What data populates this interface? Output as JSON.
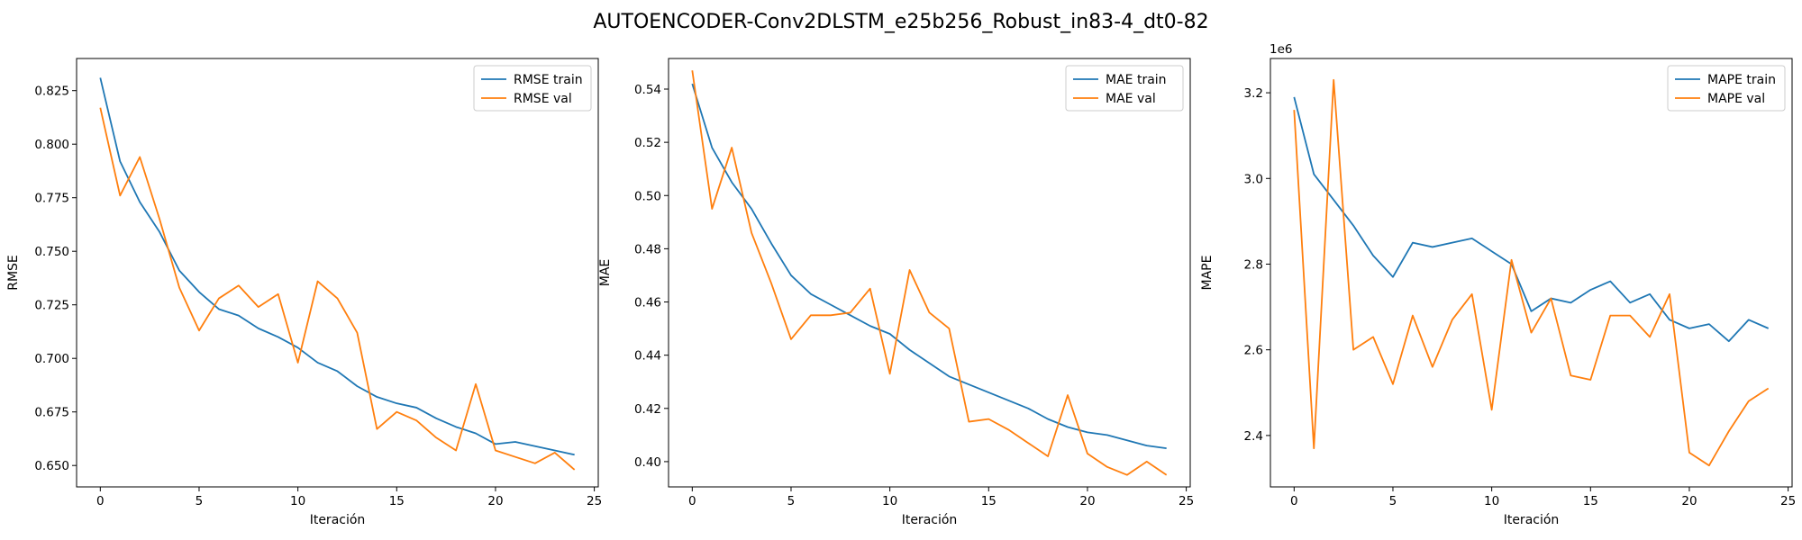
{
  "figure": {
    "title": "AUTOENCODER-Conv2DLSTM_e25b256_Robust_in83-4_dt0-82"
  },
  "colors": {
    "train": "#1f77b4",
    "val": "#ff7f0e"
  },
  "chart_data": [
    {
      "type": "line",
      "xlabel": "Iteración",
      "ylabel": "RMSE",
      "xlim": [
        -1.2,
        25.2
      ],
      "ylim": [
        0.64,
        0.84
      ],
      "xticks": [
        0,
        5,
        10,
        15,
        20,
        25
      ],
      "xtick_labels": [
        "0",
        "5",
        "10",
        "15",
        "20",
        "25"
      ],
      "yticks": [
        0.65,
        0.675,
        0.7,
        0.725,
        0.75,
        0.775,
        0.8,
        0.825
      ],
      "ytick_labels": [
        "0.650",
        "0.675",
        "0.700",
        "0.725",
        "0.750",
        "0.775",
        "0.800",
        "0.825"
      ],
      "offset_label": "",
      "legend": "top-right",
      "grid": false,
      "x": [
        0,
        1,
        2,
        3,
        4,
        5,
        6,
        7,
        8,
        9,
        10,
        11,
        12,
        13,
        14,
        15,
        16,
        17,
        18,
        19,
        20,
        21,
        22,
        23,
        24
      ],
      "series": [
        {
          "name": "RMSE train",
          "color_key": "train",
          "values": [
            0.831,
            0.792,
            0.773,
            0.759,
            0.741,
            0.731,
            0.723,
            0.72,
            0.714,
            0.71,
            0.705,
            0.698,
            0.694,
            0.687,
            0.682,
            0.679,
            0.677,
            0.672,
            0.668,
            0.665,
            0.66,
            0.661,
            0.659,
            0.657,
            0.655
          ]
        },
        {
          "name": "RMSE val",
          "color_key": "val",
          "values": [
            0.817,
            0.776,
            0.794,
            0.765,
            0.733,
            0.713,
            0.728,
            0.734,
            0.724,
            0.73,
            0.698,
            0.736,
            0.728,
            0.712,
            0.667,
            0.675,
            0.671,
            0.663,
            0.657,
            0.688,
            0.657,
            0.654,
            0.651,
            0.656,
            0.648
          ]
        }
      ]
    },
    {
      "type": "line",
      "xlabel": "Iteración",
      "ylabel": "MAE",
      "xlim": [
        -1.2,
        25.2
      ],
      "ylim": [
        0.3905,
        0.5515
      ],
      "xticks": [
        0,
        5,
        10,
        15,
        20,
        25
      ],
      "xtick_labels": [
        "0",
        "5",
        "10",
        "15",
        "20",
        "25"
      ],
      "yticks": [
        0.4,
        0.42,
        0.44,
        0.46,
        0.48,
        0.5,
        0.52,
        0.54
      ],
      "ytick_labels": [
        "0.40",
        "0.42",
        "0.44",
        "0.46",
        "0.48",
        "0.50",
        "0.52",
        "0.54"
      ],
      "offset_label": "",
      "legend": "top-right",
      "grid": false,
      "x": [
        0,
        1,
        2,
        3,
        4,
        5,
        6,
        7,
        8,
        9,
        10,
        11,
        12,
        13,
        14,
        15,
        16,
        17,
        18,
        19,
        20,
        21,
        22,
        23,
        24
      ],
      "series": [
        {
          "name": "MAE train",
          "color_key": "train",
          "values": [
            0.542,
            0.518,
            0.505,
            0.495,
            0.482,
            0.47,
            0.463,
            0.459,
            0.455,
            0.451,
            0.448,
            0.442,
            0.437,
            0.432,
            0.429,
            0.426,
            0.423,
            0.42,
            0.416,
            0.413,
            0.411,
            0.41,
            0.408,
            0.406,
            0.405
          ]
        },
        {
          "name": "MAE val",
          "color_key": "val",
          "values": [
            0.547,
            0.495,
            0.518,
            0.486,
            0.467,
            0.446,
            0.455,
            0.455,
            0.456,
            0.465,
            0.433,
            0.472,
            0.456,
            0.45,
            0.415,
            0.416,
            0.412,
            0.407,
            0.402,
            0.425,
            0.403,
            0.398,
            0.395,
            0.4,
            0.395
          ]
        }
      ]
    },
    {
      "type": "line",
      "xlabel": "Iteración",
      "ylabel": "MAPE",
      "xlim": [
        -1.2,
        25.2
      ],
      "ylim": [
        2.28,
        3.28
      ],
      "xticks": [
        0,
        5,
        10,
        15,
        20,
        25
      ],
      "xtick_labels": [
        "0",
        "5",
        "10",
        "15",
        "20",
        "25"
      ],
      "yticks": [
        2.4,
        2.6,
        2.8,
        3.0,
        3.2
      ],
      "ytick_labels": [
        "2.4",
        "2.6",
        "2.8",
        "3.0",
        "3.2"
      ],
      "offset_label": "1e6",
      "legend": "top-right",
      "grid": false,
      "x": [
        0,
        1,
        2,
        3,
        4,
        5,
        6,
        7,
        8,
        9,
        10,
        11,
        12,
        13,
        14,
        15,
        16,
        17,
        18,
        19,
        20,
        21,
        22,
        23,
        24
      ],
      "series": [
        {
          "name": "MAPE train",
          "color_key": "train",
          "values": [
            3.19,
            3.01,
            2.95,
            2.89,
            2.82,
            2.77,
            2.85,
            2.84,
            2.85,
            2.86,
            2.83,
            2.8,
            2.69,
            2.72,
            2.71,
            2.74,
            2.76,
            2.71,
            2.73,
            2.67,
            2.65,
            2.66,
            2.62,
            2.67,
            2.65
          ]
        },
        {
          "name": "MAPE val",
          "color_key": "val",
          "values": [
            3.16,
            2.37,
            3.23,
            2.6,
            2.63,
            2.52,
            2.68,
            2.56,
            2.67,
            2.73,
            2.46,
            2.81,
            2.64,
            2.72,
            2.54,
            2.53,
            2.68,
            2.68,
            2.63,
            2.73,
            2.36,
            2.33,
            2.41,
            2.48,
            2.51
          ]
        }
      ]
    }
  ]
}
